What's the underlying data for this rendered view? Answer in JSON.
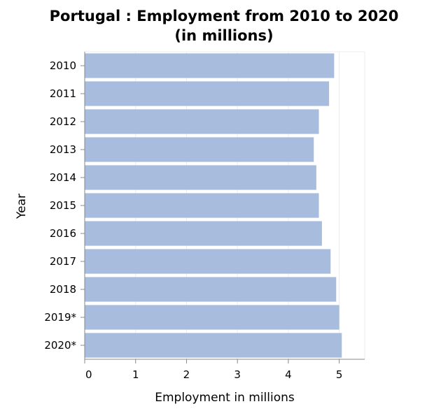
{
  "chart_data": {
    "type": "bar",
    "orientation": "horizontal",
    "title_lines": [
      "Portugal : Employment from 2010 to 2020",
      "(in millions)"
    ],
    "xlabel": "Employment in millions",
    "ylabel": "Year",
    "categories": [
      "2010",
      "2011",
      "2012",
      "2013",
      "2014",
      "2015",
      "2016",
      "2017",
      "2018",
      "2019*",
      "2020*"
    ],
    "values": [
      4.9,
      4.8,
      4.6,
      4.5,
      4.55,
      4.6,
      4.66,
      4.83,
      4.94,
      5.0,
      5.05
    ],
    "xlim": [
      0,
      5.5
    ],
    "xticks": [
      0,
      1,
      2,
      3,
      4,
      5
    ],
    "grid": true,
    "bar_color": "#a8bddd",
    "grid_color": "#ececec",
    "axis_color": "#888888"
  }
}
